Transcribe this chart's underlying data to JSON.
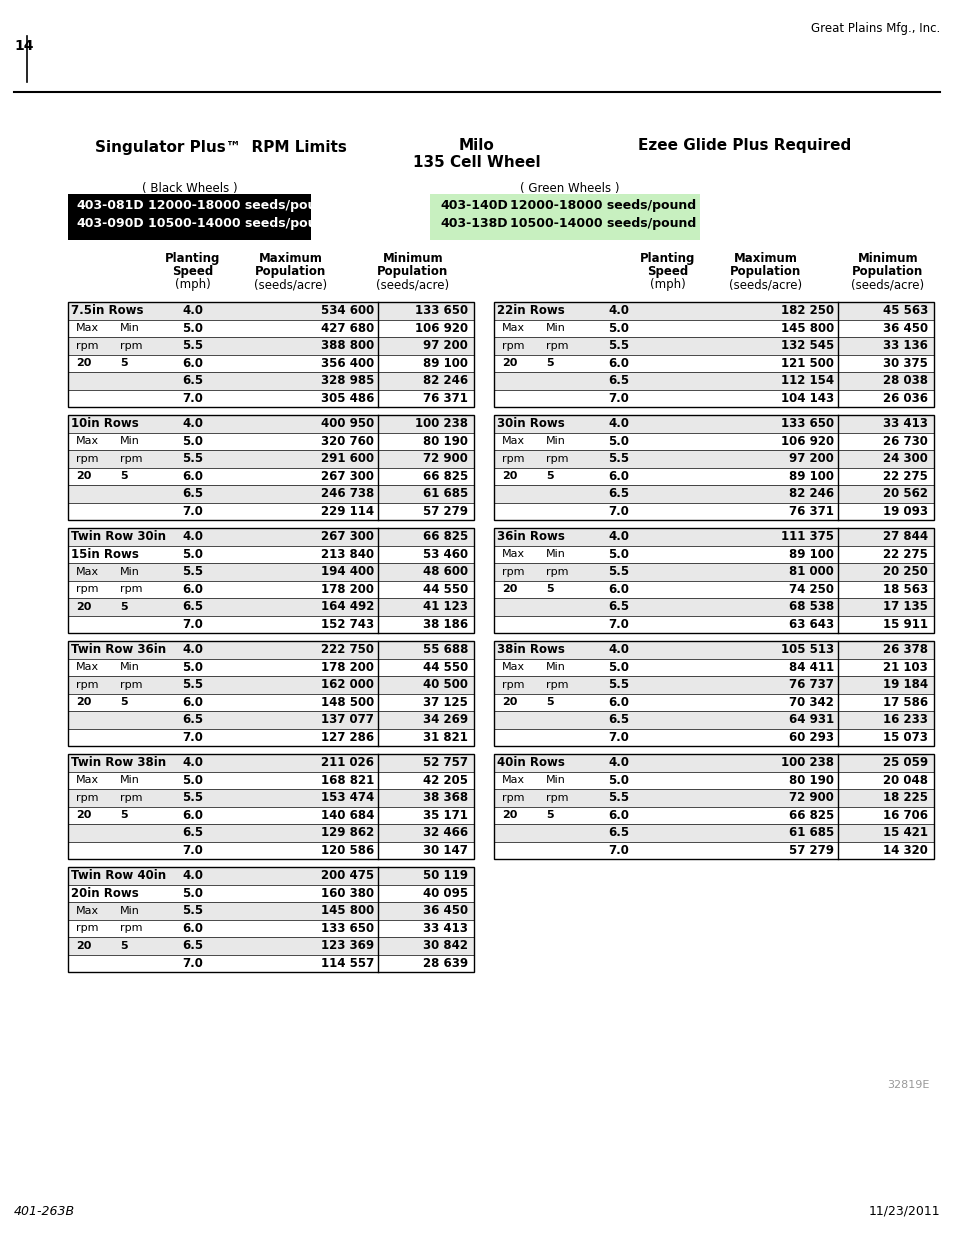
{
  "page_number": "14",
  "company": "Great Plains Mfg., Inc.",
  "doc_number": "401-263B",
  "doc_date": "11/23/2011",
  "form_number": "32819E",
  "title_left": "Singulator Plus™  RPM Limits",
  "title_center": "Milo",
  "title_center2": "135 Cell Wheel",
  "title_right": "Ezee Glide Plus Required",
  "black_wheels_label": "( Black Wheels )",
  "green_wheels_label": "( Green Wheels )",
  "left_tables": [
    {
      "name": "7.5in Rows",
      "name2": "",
      "rows": [
        [
          "",
          "",
          "4.0",
          "534 600",
          "133 650"
        ],
        [
          "Max",
          "Min",
          "5.0",
          "427 680",
          "106 920"
        ],
        [
          "rpm",
          "rpm",
          "5.5",
          "388 800",
          "97 200"
        ],
        [
          "20",
          "5",
          "6.0",
          "356 400",
          "89 100"
        ],
        [
          "",
          "",
          "6.5",
          "328 985",
          "82 246"
        ],
        [
          "",
          "",
          "7.0",
          "305 486",
          "76 371"
        ]
      ]
    },
    {
      "name": "10in Rows",
      "name2": "",
      "rows": [
        [
          "",
          "",
          "4.0",
          "400 950",
          "100 238"
        ],
        [
          "Max",
          "Min",
          "5.0",
          "320 760",
          "80 190"
        ],
        [
          "rpm",
          "rpm",
          "5.5",
          "291 600",
          "72 900"
        ],
        [
          "20",
          "5",
          "6.0",
          "267 300",
          "66 825"
        ],
        [
          "",
          "",
          "6.5",
          "246 738",
          "61 685"
        ],
        [
          "",
          "",
          "7.0",
          "229 114",
          "57 279"
        ]
      ]
    },
    {
      "name": "Twin Row 30in",
      "name2": "15in Rows",
      "rows": [
        [
          "",
          "",
          "4.0",
          "267 300",
          "66 825"
        ],
        [
          "",
          "",
          "5.0",
          "213 840",
          "53 460"
        ],
        [
          "Max",
          "Min",
          "5.5",
          "194 400",
          "48 600"
        ],
        [
          "rpm",
          "rpm",
          "6.0",
          "178 200",
          "44 550"
        ],
        [
          "20",
          "5",
          "6.5",
          "164 492",
          "41 123"
        ],
        [
          "",
          "",
          "7.0",
          "152 743",
          "38 186"
        ]
      ]
    },
    {
      "name": "Twin Row 36in",
      "name2": "",
      "rows": [
        [
          "",
          "",
          "4.0",
          "222 750",
          "55 688"
        ],
        [
          "Max",
          "Min",
          "5.0",
          "178 200",
          "44 550"
        ],
        [
          "rpm",
          "rpm",
          "5.5",
          "162 000",
          "40 500"
        ],
        [
          "20",
          "5",
          "6.0",
          "148 500",
          "37 125"
        ],
        [
          "",
          "",
          "6.5",
          "137 077",
          "34 269"
        ],
        [
          "",
          "",
          "7.0",
          "127 286",
          "31 821"
        ]
      ]
    },
    {
      "name": "Twin Row 38in",
      "name2": "",
      "rows": [
        [
          "",
          "",
          "4.0",
          "211 026",
          "52 757"
        ],
        [
          "Max",
          "Min",
          "5.0",
          "168 821",
          "42 205"
        ],
        [
          "rpm",
          "rpm",
          "5.5",
          "153 474",
          "38 368"
        ],
        [
          "20",
          "5",
          "6.0",
          "140 684",
          "35 171"
        ],
        [
          "",
          "",
          "6.5",
          "129 862",
          "32 466"
        ],
        [
          "",
          "",
          "7.0",
          "120 586",
          "30 147"
        ]
      ]
    },
    {
      "name": "Twin Row 40in",
      "name2": "20in Rows",
      "rows": [
        [
          "",
          "",
          "4.0",
          "200 475",
          "50 119"
        ],
        [
          "",
          "",
          "5.0",
          "160 380",
          "40 095"
        ],
        [
          "Max",
          "Min",
          "5.5",
          "145 800",
          "36 450"
        ],
        [
          "rpm",
          "rpm",
          "6.0",
          "133 650",
          "33 413"
        ],
        [
          "20",
          "5",
          "6.5",
          "123 369",
          "30 842"
        ],
        [
          "",
          "",
          "7.0",
          "114 557",
          "28 639"
        ]
      ]
    }
  ],
  "right_tables": [
    {
      "name": "22in Rows",
      "name2": "",
      "rows": [
        [
          "",
          "",
          "4.0",
          "182 250",
          "45 563"
        ],
        [
          "Max",
          "Min",
          "5.0",
          "145 800",
          "36 450"
        ],
        [
          "rpm",
          "rpm",
          "5.5",
          "132 545",
          "33 136"
        ],
        [
          "20",
          "5",
          "6.0",
          "121 500",
          "30 375"
        ],
        [
          "",
          "",
          "6.5",
          "112 154",
          "28 038"
        ],
        [
          "",
          "",
          "7.0",
          "104 143",
          "26 036"
        ]
      ]
    },
    {
      "name": "30in Rows",
      "name2": "",
      "rows": [
        [
          "",
          "",
          "4.0",
          "133 650",
          "33 413"
        ],
        [
          "Max",
          "Min",
          "5.0",
          "106 920",
          "26 730"
        ],
        [
          "rpm",
          "rpm",
          "5.5",
          "97 200",
          "24 300"
        ],
        [
          "20",
          "5",
          "6.0",
          "89 100",
          "22 275"
        ],
        [
          "",
          "",
          "6.5",
          "82 246",
          "20 562"
        ],
        [
          "",
          "",
          "7.0",
          "76 371",
          "19 093"
        ]
      ]
    },
    {
      "name": "36in Rows",
      "name2": "",
      "rows": [
        [
          "",
          "",
          "4.0",
          "111 375",
          "27 844"
        ],
        [
          "Max",
          "Min",
          "5.0",
          "89 100",
          "22 275"
        ],
        [
          "rpm",
          "rpm",
          "5.5",
          "81 000",
          "20 250"
        ],
        [
          "20",
          "5",
          "6.0",
          "74 250",
          "18 563"
        ],
        [
          "",
          "",
          "6.5",
          "68 538",
          "17 135"
        ],
        [
          "",
          "",
          "7.0",
          "63 643",
          "15 911"
        ]
      ]
    },
    {
      "name": "38in Rows",
      "name2": "",
      "rows": [
        [
          "",
          "",
          "4.0",
          "105 513",
          "26 378"
        ],
        [
          "Max",
          "Min",
          "5.0",
          "84 411",
          "21 103"
        ],
        [
          "rpm",
          "rpm",
          "5.5",
          "76 737",
          "19 184"
        ],
        [
          "20",
          "5",
          "6.0",
          "70 342",
          "17 586"
        ],
        [
          "",
          "",
          "6.5",
          "64 931",
          "16 233"
        ],
        [
          "",
          "",
          "7.0",
          "60 293",
          "15 073"
        ]
      ]
    },
    {
      "name": "40in Rows",
      "name2": "",
      "rows": [
        [
          "",
          "",
          "4.0",
          "100 238",
          "25 059"
        ],
        [
          "Max",
          "Min",
          "5.0",
          "80 190",
          "20 048"
        ],
        [
          "rpm",
          "rpm",
          "5.5",
          "72 900",
          "18 225"
        ],
        [
          "20",
          "5",
          "6.0",
          "66 825",
          "16 706"
        ],
        [
          "",
          "",
          "6.5",
          "61 685",
          "15 421"
        ],
        [
          "",
          "",
          "7.0",
          "57 279",
          "14 320"
        ]
      ]
    }
  ]
}
